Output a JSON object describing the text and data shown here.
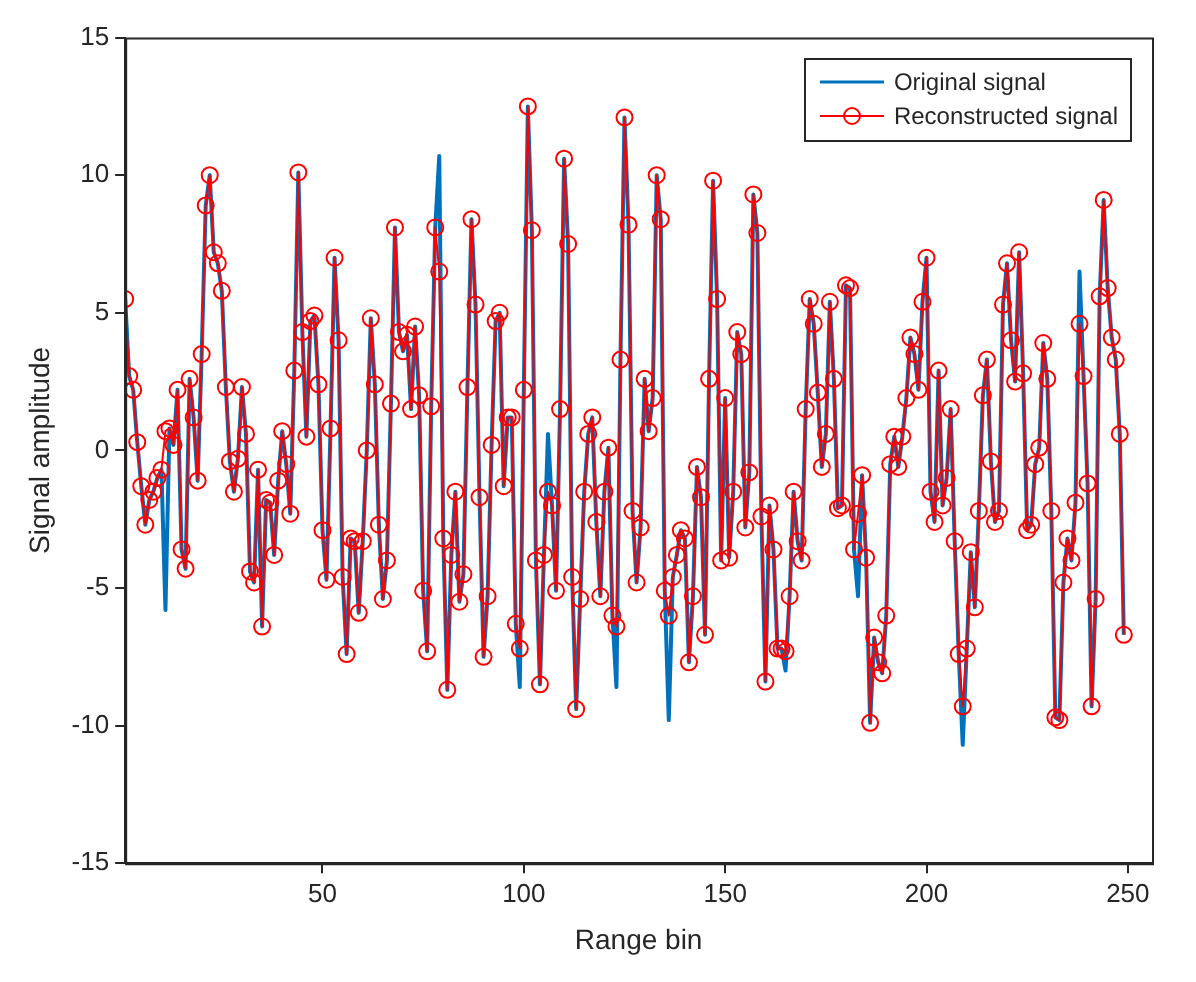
{
  "chart_data": {
    "type": "line",
    "xlabel": "Range bin",
    "ylabel": "Signal amplitude",
    "x": [
      1,
      2,
      3,
      4,
      5,
      6,
      7,
      8,
      9,
      10,
      11,
      12,
      13,
      14,
      15,
      16,
      17,
      18,
      19,
      20,
      21,
      22,
      23,
      24,
      25,
      26,
      27,
      28,
      29,
      30,
      31,
      32,
      33,
      34,
      35,
      36,
      37,
      38,
      39,
      40,
      41,
      42,
      43,
      44,
      45,
      46,
      47,
      48,
      49,
      50,
      51,
      52,
      53,
      54,
      55,
      56,
      57,
      58,
      59,
      60,
      61,
      62,
      63,
      64,
      65,
      66,
      67,
      68,
      69,
      70,
      71,
      72,
      73,
      74,
      75,
      76,
      77,
      78,
      79,
      80,
      81,
      82,
      83,
      84,
      85,
      86,
      87,
      88,
      89,
      90,
      91,
      92,
      93,
      94,
      95,
      96,
      97,
      98,
      99,
      100,
      101,
      102,
      103,
      104,
      105,
      106,
      107,
      108,
      109,
      110,
      111,
      112,
      113,
      114,
      115,
      116,
      117,
      118,
      119,
      120,
      121,
      122,
      123,
      124,
      125,
      126,
      127,
      128,
      129,
      130,
      131,
      132,
      133,
      134,
      135,
      136,
      137,
      138,
      139,
      140,
      141,
      142,
      143,
      144,
      145,
      146,
      147,
      148,
      149,
      150,
      151,
      152,
      153,
      154,
      155,
      156,
      157,
      158,
      159,
      160,
      161,
      162,
      163,
      164,
      165,
      166,
      167,
      168,
      169,
      170,
      171,
      172,
      173,
      174,
      175,
      176,
      177,
      178,
      179,
      180,
      181,
      182,
      183,
      184,
      185,
      186,
      187,
      188,
      189,
      190,
      191,
      192,
      193,
      194,
      195,
      196,
      197,
      198,
      199,
      200,
      201,
      202,
      203,
      204,
      205,
      206,
      207,
      208,
      209,
      210,
      211,
      212,
      213,
      214,
      215,
      216,
      217,
      218,
      219,
      220,
      221,
      222,
      223,
      224,
      225,
      226,
      227,
      228,
      229,
      230,
      231,
      232,
      233,
      234,
      235,
      236,
      237,
      238,
      239,
      240,
      241,
      242,
      243,
      244,
      245,
      246,
      247,
      248,
      249
    ],
    "series": [
      {
        "name": "Original signal",
        "color": "#0072bd",
        "marker": "none",
        "values": [
          5.5,
          2.7,
          2.2,
          0.3,
          -1.3,
          -2.7,
          -1.8,
          -1.5,
          -1.0,
          -0.7,
          -5.8,
          0.8,
          0.2,
          2.2,
          -3.6,
          -4.3,
          2.6,
          1.2,
          -1.1,
          3.5,
          8.9,
          10.0,
          7.2,
          6.8,
          5.8,
          2.3,
          -0.4,
          -1.5,
          -0.3,
          2.3,
          0.6,
          -4.4,
          -4.8,
          -0.7,
          -6.4,
          -1.8,
          -1.9,
          -3.8,
          -1.1,
          0.7,
          -0.5,
          -2.3,
          2.9,
          10.1,
          4.3,
          0.5,
          4.7,
          4.9,
          2.4,
          -2.9,
          -4.7,
          0.8,
          7.0,
          4.0,
          -4.6,
          -7.4,
          -3.2,
          -3.3,
          -5.9,
          -3.3,
          0.0,
          4.8,
          2.4,
          -2.7,
          -5.4,
          -4.0,
          1.7,
          8.1,
          4.3,
          3.6,
          4.2,
          1.5,
          4.5,
          2.0,
          -5.1,
          -7.3,
          1.6,
          8.1,
          10.7,
          -3.2,
          -8.7,
          -3.8,
          -1.5,
          -5.5,
          -4.5,
          2.3,
          8.4,
          5.3,
          -1.7,
          -7.5,
          -5.3,
          0.2,
          4.7,
          5.0,
          -1.3,
          1.2,
          1.2,
          -6.3,
          -8.6,
          2.2,
          12.5,
          8.0,
          -4.0,
          -8.5,
          -3.8,
          0.6,
          -2.0,
          -5.1,
          1.5,
          10.6,
          7.5,
          -4.6,
          -9.4,
          -5.4,
          -1.5,
          0.6,
          1.2,
          -2.6,
          -5.3,
          -1.5,
          0.1,
          -6.0,
          -8.6,
          3.3,
          12.1,
          8.2,
          -2.2,
          -4.8,
          -2.8,
          2.6,
          0.7,
          1.9,
          10.0,
          8.4,
          -5.1,
          -9.8,
          -4.6,
          -3.8,
          -2.9,
          -3.2,
          -7.7,
          -5.3,
          -0.6,
          -1.7,
          -6.7,
          2.6,
          9.8,
          5.5,
          -4.0,
          1.9,
          -3.9,
          -1.5,
          4.3,
          3.5,
          -2.8,
          -0.8,
          9.3,
          7.9,
          -2.4,
          -8.4,
          -2.0,
          -3.6,
          -7.2,
          -7.2,
          -8.0,
          -5.3,
          -1.5,
          -3.3,
          -4.0,
          1.5,
          5.5,
          4.6,
          2.1,
          -0.6,
          0.6,
          5.4,
          2.6,
          -2.1,
          -2.0,
          6.0,
          5.9,
          -3.6,
          -5.3,
          -0.9,
          -3.9,
          -9.9,
          -6.8,
          -7.7,
          -8.1,
          -6.0,
          -0.5,
          0.5,
          -0.6,
          0.5,
          1.9,
          4.1,
          3.5,
          2.2,
          5.4,
          7.0,
          -1.5,
          -2.6,
          2.9,
          -2.0,
          -1.0,
          1.5,
          -3.3,
          -7.4,
          -10.7,
          -7.2,
          -3.7,
          -5.7,
          -2.2,
          2.0,
          3.3,
          -0.4,
          -2.6,
          -2.2,
          5.3,
          6.8,
          4.0,
          2.5,
          7.2,
          2.8,
          -2.9,
          -2.7,
          -0.5,
          0.1,
          3.9,
          2.6,
          -2.2,
          -9.7,
          -9.8,
          -4.8,
          -3.2,
          -4.0,
          -1.9,
          6.5,
          2.7,
          -1.2,
          -9.3,
          -5.4,
          5.6,
          9.1,
          5.9,
          4.1,
          3.3,
          0.6,
          -6.7
        ]
      },
      {
        "name": "Reconstructed signal",
        "color": "#ff0000",
        "marker": "circle",
        "values": [
          5.5,
          2.7,
          2.2,
          0.3,
          -1.3,
          -2.7,
          -1.8,
          -1.5,
          -1.0,
          -0.7,
          0.7,
          0.8,
          0.2,
          2.2,
          -3.6,
          -4.3,
          2.6,
          1.2,
          -1.1,
          3.5,
          8.9,
          10.0,
          7.2,
          6.8,
          5.8,
          2.3,
          -0.4,
          -1.5,
          -0.3,
          2.3,
          0.6,
          -4.4,
          -4.8,
          -0.7,
          -6.4,
          -1.8,
          -1.9,
          -3.8,
          -1.1,
          0.7,
          -0.5,
          -2.3,
          2.9,
          10.1,
          4.3,
          0.5,
          4.7,
          4.9,
          2.4,
          -2.9,
          -4.7,
          0.8,
          7.0,
          4.0,
          -4.6,
          -7.4,
          -3.2,
          -3.3,
          -5.9,
          -3.3,
          0.0,
          4.8,
          2.4,
          -2.7,
          -5.4,
          -4.0,
          1.7,
          8.1,
          4.3,
          3.6,
          4.2,
          1.5,
          4.5,
          2.0,
          -5.1,
          -7.3,
          1.6,
          8.1,
          6.5,
          -3.2,
          -8.7,
          -3.8,
          -1.5,
          -5.5,
          -4.5,
          2.3,
          8.4,
          5.3,
          -1.7,
          -7.5,
          -5.3,
          0.2,
          4.7,
          5.0,
          -1.3,
          1.2,
          1.2,
          -6.3,
          -7.2,
          2.2,
          12.5,
          8.0,
          -4.0,
          -8.5,
          -3.8,
          -1.5,
          -2.0,
          -5.1,
          1.5,
          10.6,
          7.5,
          -4.6,
          -9.4,
          -5.4,
          -1.5,
          0.6,
          1.2,
          -2.6,
          -5.3,
          -1.5,
          0.1,
          -6.0,
          -6.4,
          3.3,
          12.1,
          8.2,
          -2.2,
          -4.8,
          -2.8,
          2.6,
          0.7,
          1.9,
          10.0,
          8.4,
          -5.1,
          -6.0,
          -4.6,
          -3.8,
          -2.9,
          -3.2,
          -7.7,
          -5.3,
          -0.6,
          -1.7,
          -6.7,
          2.6,
          9.8,
          5.5,
          -4.0,
          1.9,
          -3.9,
          -1.5,
          4.3,
          3.5,
          -2.8,
          -0.8,
          9.3,
          7.9,
          -2.4,
          -8.4,
          -2.0,
          -3.6,
          -7.2,
          -7.2,
          -7.3,
          -5.3,
          -1.5,
          -3.3,
          -4.0,
          1.5,
          5.5,
          4.6,
          2.1,
          -0.6,
          0.6,
          5.4,
          2.6,
          -2.1,
          -2.0,
          6.0,
          5.9,
          -3.6,
          -2.3,
          -0.9,
          -3.9,
          -9.9,
          -6.8,
          -7.7,
          -8.1,
          -6.0,
          -0.5,
          0.5,
          -0.6,
          0.5,
          1.9,
          4.1,
          3.5,
          2.2,
          5.4,
          7.0,
          -1.5,
          -2.6,
          2.9,
          -2.0,
          -1.0,
          1.5,
          -3.3,
          -7.4,
          -9.3,
          -7.2,
          -3.7,
          -5.7,
          -2.2,
          2.0,
          3.3,
          -0.4,
          -2.6,
          -2.2,
          5.3,
          6.8,
          4.0,
          2.5,
          7.2,
          2.8,
          -2.9,
          -2.7,
          -0.5,
          0.1,
          3.9,
          2.6,
          -2.2,
          -9.7,
          -9.8,
          -4.8,
          -3.2,
          -4.0,
          -1.9,
          4.6,
          2.7,
          -1.2,
          -9.3,
          -5.4,
          5.6,
          9.1,
          5.9,
          4.1,
          3.3,
          0.6,
          -6.7
        ]
      }
    ],
    "xlim": [
      1,
      256
    ],
    "xticks": [
      50,
      100,
      150,
      200,
      250
    ],
    "ylim": [
      -15,
      15
    ],
    "yticks": [
      -15,
      -10,
      -5,
      0,
      5,
      10,
      15
    ],
    "grid": false,
    "legend": "top right",
    "line_style": "solid"
  }
}
